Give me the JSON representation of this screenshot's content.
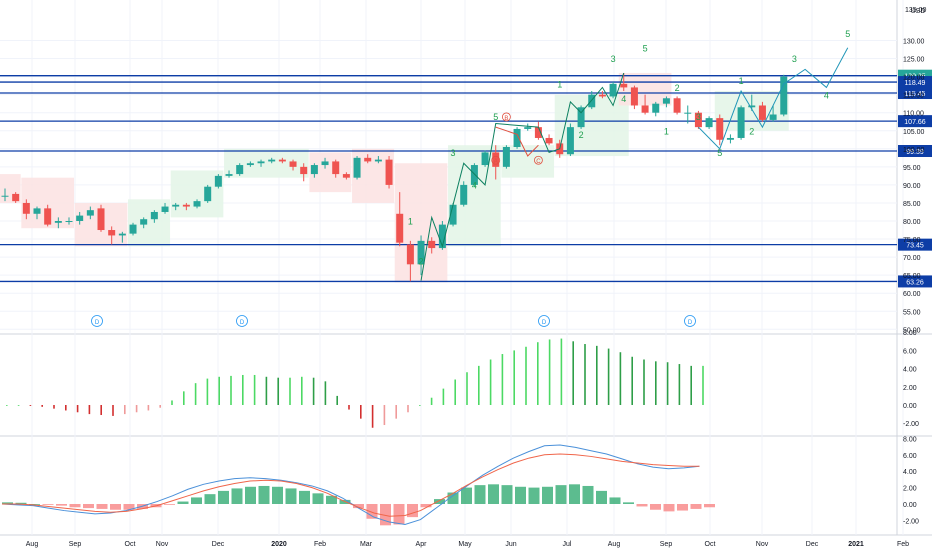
{
  "currency": "USD",
  "price_axis": {
    "top_label": "135.00",
    "labels": [
      "130.00",
      "125.00",
      "120.00",
      "115.00",
      "110.00",
      "105.00",
      "100.00",
      "95.00",
      "90.00",
      "85.00",
      "80.00",
      "75.00",
      "70.00",
      "65.00",
      "60.00",
      "55.00",
      "50.00"
    ]
  },
  "price_levels": [
    {
      "value": 120.25,
      "label": "120.25",
      "highlight": true
    },
    {
      "value": 118.49,
      "label": "118.49"
    },
    {
      "value": 115.45,
      "label": "115.45"
    },
    {
      "value": 107.66,
      "label": "107.66"
    },
    {
      "value": 99.39,
      "label": "99.39"
    },
    {
      "value": 73.45,
      "label": "73.45"
    },
    {
      "value": 63.26,
      "label": "63.26"
    }
  ],
  "time_axis": {
    "labels": [
      "Aug",
      "Sep",
      "Oct",
      "Nov",
      "Dec",
      "2020",
      "Feb",
      "Mar",
      "Apr",
      "May",
      "Jun",
      "Jul",
      "Aug",
      "Sep",
      "Oct",
      "Nov",
      "Dec",
      "2021",
      "Feb"
    ]
  },
  "dividend_marker": "D",
  "osc_axis": {
    "labels": [
      "8.00",
      "6.00",
      "4.00",
      "2.00",
      "0.00",
      "-2.00"
    ]
  },
  "macd_axis": {
    "labels": [
      "8.00",
      "6.00",
      "4.00",
      "2.00",
      "0.00",
      "-2.00"
    ]
  },
  "wave_labels": {
    "w1": "1",
    "w2": "2",
    "w3": "3",
    "w4": "4",
    "w5": "5",
    "wa": "A",
    "wb": "B",
    "wc": "C"
  },
  "colors": {
    "up": "#26a69a",
    "down": "#ef5350",
    "level": "#0d3da6",
    "wave": "#20a050",
    "corr": "#e0503f",
    "box_green": "#e3f4e6",
    "box_red": "#fbe2e2",
    "macd_line": "#4a90d9",
    "signal_line": "#f0654a"
  },
  "chart_data": [
    {
      "type": "candlestick",
      "title": "",
      "ylim": [
        50,
        135
      ],
      "x_range": [
        "2019-07-15",
        "2021-02-28"
      ],
      "candles": [
        {
          "date": "2019-07-15",
          "o": 87.0,
          "h": 89.0,
          "l": 85.5,
          "c": 87.0
        },
        {
          "date": "2019-07-22",
          "o": 87.5,
          "h": 88.0,
          "l": 85.0,
          "c": 85.5
        },
        {
          "date": "2019-07-29",
          "o": 85.0,
          "h": 86.0,
          "l": 80.5,
          "c": 82.0
        },
        {
          "date": "2019-08-05",
          "o": 82.0,
          "h": 84.0,
          "l": 80.5,
          "c": 83.5
        },
        {
          "date": "2019-08-12",
          "o": 83.5,
          "h": 84.5,
          "l": 78.5,
          "c": 79.0
        },
        {
          "date": "2019-08-19",
          "o": 79.5,
          "h": 81.0,
          "l": 78.0,
          "c": 80.0
        },
        {
          "date": "2019-08-26",
          "o": 80.0,
          "h": 81.0,
          "l": 79.0,
          "c": 80.0
        },
        {
          "date": "2019-09-02",
          "o": 80.0,
          "h": 82.5,
          "l": 79.0,
          "c": 81.5
        },
        {
          "date": "2019-09-09",
          "o": 81.5,
          "h": 84.0,
          "l": 80.5,
          "c": 83.0
        },
        {
          "date": "2019-09-16",
          "o": 83.5,
          "h": 84.5,
          "l": 77.0,
          "c": 77.5
        },
        {
          "date": "2019-09-23",
          "o": 77.5,
          "h": 78.5,
          "l": 73.5,
          "c": 76.0
        },
        {
          "date": "2019-09-30",
          "o": 76.0,
          "h": 77.0,
          "l": 74.0,
          "c": 76.5
        },
        {
          "date": "2019-10-07",
          "o": 76.5,
          "h": 79.5,
          "l": 76.0,
          "c": 79.0
        },
        {
          "date": "2019-10-14",
          "o": 79.0,
          "h": 81.0,
          "l": 78.0,
          "c": 80.5
        },
        {
          "date": "2019-10-21",
          "o": 80.5,
          "h": 83.0,
          "l": 79.5,
          "c": 82.5
        },
        {
          "date": "2019-10-28",
          "o": 82.5,
          "h": 85.0,
          "l": 82.0,
          "c": 84.0
        },
        {
          "date": "2019-11-04",
          "o": 84.0,
          "h": 85.0,
          "l": 83.0,
          "c": 84.5
        },
        {
          "date": "2019-11-11",
          "o": 84.5,
          "h": 85.0,
          "l": 83.0,
          "c": 84.0
        },
        {
          "date": "2019-11-18",
          "o": 84.0,
          "h": 86.0,
          "l": 83.5,
          "c": 85.5
        },
        {
          "date": "2019-11-25",
          "o": 85.5,
          "h": 90.0,
          "l": 85.0,
          "c": 89.5
        },
        {
          "date": "2019-12-02",
          "o": 89.5,
          "h": 93.0,
          "l": 89.0,
          "c": 92.5
        },
        {
          "date": "2019-12-09",
          "o": 92.5,
          "h": 94.0,
          "l": 92.0,
          "c": 93.0
        },
        {
          "date": "2019-12-16",
          "o": 93.0,
          "h": 96.0,
          "l": 92.5,
          "c": 95.5
        },
        {
          "date": "2019-12-23",
          "o": 95.5,
          "h": 96.5,
          "l": 95.0,
          "c": 96.0
        },
        {
          "date": "2019-12-30",
          "o": 96.0,
          "h": 97.0,
          "l": 95.0,
          "c": 96.5
        },
        {
          "date": "2020-01-06",
          "o": 96.5,
          "h": 97.5,
          "l": 96.0,
          "c": 97.0
        },
        {
          "date": "2020-01-13",
          "o": 97.0,
          "h": 97.5,
          "l": 96.0,
          "c": 96.5
        },
        {
          "date": "2020-01-20",
          "o": 96.5,
          "h": 97.0,
          "l": 94.0,
          "c": 95.0
        },
        {
          "date": "2020-01-27",
          "o": 95.0,
          "h": 96.0,
          "l": 91.0,
          "c": 93.0
        },
        {
          "date": "2020-02-03",
          "o": 93.0,
          "h": 96.0,
          "l": 92.0,
          "c": 95.5
        },
        {
          "date": "2020-02-10",
          "o": 95.5,
          "h": 97.5,
          "l": 94.5,
          "c": 96.5
        },
        {
          "date": "2020-02-17",
          "o": 96.5,
          "h": 97.0,
          "l": 92.0,
          "c": 93.0
        },
        {
          "date": "2020-02-24",
          "o": 93.0,
          "h": 93.5,
          "l": 91.5,
          "c": 92.0
        },
        {
          "date": "2020-03-02",
          "o": 92.0,
          "h": 98.0,
          "l": 91.5,
          "c": 97.5
        },
        {
          "date": "2020-03-09",
          "o": 97.5,
          "h": 98.5,
          "l": 96.0,
          "c": 96.5
        },
        {
          "date": "2020-03-16",
          "o": 96.5,
          "h": 98.0,
          "l": 96.0,
          "c": 97.0
        },
        {
          "date": "2020-03-23",
          "o": 97.0,
          "h": 98.0,
          "l": 89.0,
          "c": 90.0
        },
        {
          "date": "2020-03-30",
          "o": 82.0,
          "h": 88.0,
          "l": 73.0,
          "c": 74.0
        },
        {
          "date": "2020-04-06",
          "o": 73.5,
          "h": 74.5,
          "l": 63.3,
          "c": 68.0
        },
        {
          "date": "2020-04-13",
          "o": 68.0,
          "h": 76.0,
          "l": 65.0,
          "c": 74.5
        },
        {
          "date": "2020-04-20",
          "o": 74.5,
          "h": 75.5,
          "l": 71.0,
          "c": 72.5
        },
        {
          "date": "2020-04-27",
          "o": 72.5,
          "h": 80.0,
          "l": 72.0,
          "c": 79.0
        },
        {
          "date": "2020-05-04",
          "o": 79.0,
          "h": 85.0,
          "l": 78.5,
          "c": 84.5
        },
        {
          "date": "2020-05-11",
          "o": 84.5,
          "h": 91.0,
          "l": 84.0,
          "c": 90.0
        },
        {
          "date": "2020-05-18",
          "o": 90.0,
          "h": 96.0,
          "l": 89.5,
          "c": 95.5
        },
        {
          "date": "2020-05-25",
          "o": 95.5,
          "h": 99.5,
          "l": 95.0,
          "c": 99.0
        },
        {
          "date": "2020-06-01",
          "o": 99.0,
          "h": 101.0,
          "l": 91.5,
          "c": 95.0
        },
        {
          "date": "2020-06-08",
          "o": 95.0,
          "h": 101.0,
          "l": 94.5,
          "c": 100.5
        },
        {
          "date": "2020-06-15",
          "o": 100.5,
          "h": 106.0,
          "l": 100.0,
          "c": 105.5
        },
        {
          "date": "2020-06-22",
          "o": 105.5,
          "h": 107.0,
          "l": 105.0,
          "c": 106.0
        },
        {
          "date": "2020-06-29",
          "o": 106.0,
          "h": 107.5,
          "l": 102.5,
          "c": 103.0
        },
        {
          "date": "2020-07-06",
          "o": 103.0,
          "h": 104.0,
          "l": 101.0,
          "c": 101.5
        },
        {
          "date": "2020-07-13",
          "o": 101.5,
          "h": 102.5,
          "l": 97.5,
          "c": 98.5
        },
        {
          "date": "2020-07-20",
          "o": 98.5,
          "h": 107.0,
          "l": 98.0,
          "c": 106.0
        },
        {
          "date": "2020-07-27",
          "o": 106.0,
          "h": 112.0,
          "l": 105.5,
          "c": 111.5
        },
        {
          "date": "2020-08-03",
          "o": 111.5,
          "h": 116.0,
          "l": 111.0,
          "c": 115.0
        },
        {
          "date": "2020-08-10",
          "o": 115.0,
          "h": 116.0,
          "l": 114.0,
          "c": 114.5
        },
        {
          "date": "2020-08-17",
          "o": 114.5,
          "h": 118.5,
          "l": 114.0,
          "c": 118.0
        },
        {
          "date": "2020-08-24",
          "o": 118.0,
          "h": 121.0,
          "l": 116.0,
          "c": 117.0
        },
        {
          "date": "2020-08-31",
          "o": 117.0,
          "h": 117.5,
          "l": 111.0,
          "c": 112.0
        },
        {
          "date": "2020-09-07",
          "o": 112.0,
          "h": 115.0,
          "l": 109.5,
          "c": 110.0
        },
        {
          "date": "2020-09-14",
          "o": 110.0,
          "h": 113.0,
          "l": 109.0,
          "c": 112.5
        },
        {
          "date": "2020-09-21",
          "o": 112.5,
          "h": 114.5,
          "l": 111.5,
          "c": 114.0
        },
        {
          "date": "2020-09-28",
          "o": 114.0,
          "h": 114.5,
          "l": 109.5,
          "c": 110.0
        },
        {
          "date": "2020-10-05",
          "o": 110.0,
          "h": 112.0,
          "l": 107.0,
          "c": 110.0
        },
        {
          "date": "2020-10-12",
          "o": 110.0,
          "h": 110.5,
          "l": 105.5,
          "c": 106.0
        },
        {
          "date": "2020-10-19",
          "o": 106.0,
          "h": 109.0,
          "l": 105.5,
          "c": 108.5
        },
        {
          "date": "2020-10-26",
          "o": 108.5,
          "h": 109.5,
          "l": 101.0,
          "c": 102.5
        },
        {
          "date": "2020-11-02",
          "o": 102.5,
          "h": 104.0,
          "l": 101.5,
          "c": 103.0
        },
        {
          "date": "2020-11-09",
          "o": 103.0,
          "h": 112.0,
          "l": 102.5,
          "c": 111.5
        },
        {
          "date": "2020-11-16",
          "o": 111.5,
          "h": 115.0,
          "l": 110.5,
          "c": 112.0
        },
        {
          "date": "2020-11-23",
          "o": 112.0,
          "h": 113.0,
          "l": 107.5,
          "c": 108.0
        },
        {
          "date": "2020-11-30",
          "o": 108.0,
          "h": 112.0,
          "l": 107.5,
          "c": 109.5
        },
        {
          "date": "2020-12-07",
          "o": 109.5,
          "h": 120.5,
          "l": 109.0,
          "c": 120.0
        }
      ]
    },
    {
      "type": "bar",
      "name": "oscillator histogram",
      "ylim": [
        -3,
        8
      ],
      "values": [
        0.0,
        0.0,
        -0.1,
        -0.2,
        -0.4,
        -0.6,
        -0.8,
        -1.0,
        -1.1,
        -1.2,
        -1.0,
        -0.8,
        -0.6,
        -0.3,
        0.5,
        1.5,
        2.4,
        2.9,
        3.1,
        3.2,
        3.3,
        3.3,
        3.1,
        3.0,
        3.0,
        3.1,
        3.0,
        2.6,
        1.0,
        -0.5,
        -1.5,
        -2.5,
        -2.2,
        -1.5,
        -0.8,
        0.0,
        0.8,
        1.8,
        2.8,
        3.6,
        4.3,
        5.0,
        5.6,
        6.0,
        6.4,
        6.9,
        7.2,
        7.3,
        7.0,
        6.7,
        6.5,
        6.2,
        5.8,
        5.3,
        5.0,
        4.8,
        4.7,
        4.5,
        4.3,
        4.3
      ]
    },
    {
      "type": "bar",
      "name": "MACD histogram",
      "ylim": [
        -3,
        8
      ],
      "values": [
        0.2,
        0.15,
        0.0,
        -0.1,
        -0.2,
        -0.4,
        -0.5,
        -0.6,
        -0.7,
        -0.7,
        -0.6,
        -0.4,
        -0.1,
        0.3,
        0.8,
        1.2,
        1.6,
        1.9,
        2.1,
        2.2,
        2.1,
        1.9,
        1.6,
        1.3,
        1.0,
        0.5,
        -0.5,
        -1.8,
        -2.6,
        -2.5,
        -1.6,
        -0.4,
        0.6,
        1.4,
        2.0,
        2.3,
        2.4,
        2.3,
        2.1,
        2.0,
        2.1,
        2.3,
        2.4,
        2.2,
        1.6,
        0.8,
        0.2,
        -0.3,
        -0.7,
        -0.9,
        -0.8,
        -0.6,
        -0.4
      ]
    },
    {
      "type": "line",
      "name": "MACD",
      "ylim": [
        -3,
        8
      ],
      "values": [
        0.0,
        -0.1,
        -0.2,
        -0.5,
        -0.8,
        -1.0,
        -1.2,
        -1.1,
        -0.8,
        -0.3,
        0.3,
        1.0,
        1.8,
        2.4,
        2.8,
        3.1,
        3.2,
        3.1,
        2.9,
        2.6,
        2.2,
        1.6,
        0.7,
        -0.5,
        -1.6,
        -2.2,
        -2.5,
        -1.9,
        -0.5,
        0.9,
        2.2,
        3.5,
        4.6,
        5.6,
        6.4,
        7.1,
        7.2,
        6.9,
        6.5,
        6.1,
        5.5,
        4.9,
        4.5,
        4.3,
        4.4,
        4.6
      ]
    },
    {
      "type": "line",
      "name": "Signal",
      "ylim": [
        -3,
        8
      ],
      "values": [
        0.0,
        0.0,
        -0.1,
        -0.3,
        -0.5,
        -0.7,
        -0.9,
        -1.0,
        -0.9,
        -0.6,
        -0.2,
        0.4,
        1.0,
        1.6,
        2.1,
        2.5,
        2.8,
        2.9,
        2.8,
        2.5,
        2.0,
        1.3,
        0.4,
        -0.4,
        -1.1,
        -1.5,
        -1.4,
        -0.8,
        0.2,
        1.2,
        2.3,
        3.3,
        4.2,
        5.0,
        5.6,
        6.0,
        6.1,
        6.0,
        5.8,
        5.5,
        5.2,
        5.0,
        4.8,
        4.7,
        4.6,
        4.6
      ]
    }
  ]
}
